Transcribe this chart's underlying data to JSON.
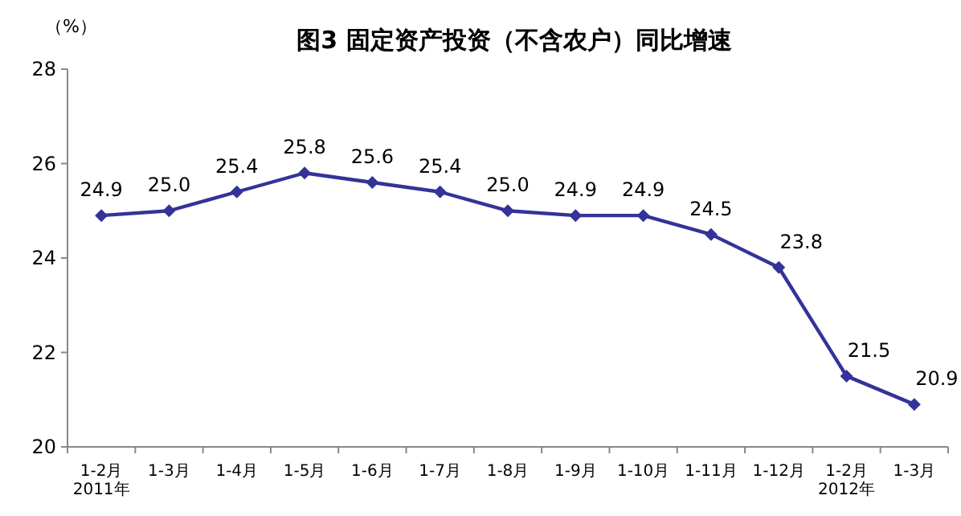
{
  "chart_data": {
    "type": "line",
    "title": "图3 固定资产投资（不含农户）同比增速",
    "ylabel": "（%）",
    "categories": [
      "1-2月\n2011年",
      "1-3月",
      "1-4月",
      "1-5月",
      "1-6月",
      "1-7月",
      "1-8月",
      "1-9月",
      "1-10月",
      "1-11月",
      "1-12月",
      "1-2月\n2012年",
      "1-3月"
    ],
    "series": [
      {
        "color": "#333399",
        "values": [
          24.9,
          25.0,
          25.4,
          25.8,
          25.6,
          25.4,
          25.0,
          24.9,
          24.9,
          24.5,
          23.8,
          21.5,
          20.9
        ],
        "value_labels": [
          "24.9",
          "25.0",
          "25.4",
          "25.8",
          "25.6",
          "25.4",
          "25.0",
          "24.9",
          "24.9",
          "24.5",
          "23.8",
          "21.5",
          "20.9"
        ]
      }
    ],
    "ylim": [
      20,
      28
    ],
    "yticks": [
      20,
      22,
      24,
      26,
      28
    ],
    "marker": "diamond",
    "line_style": "solid"
  }
}
